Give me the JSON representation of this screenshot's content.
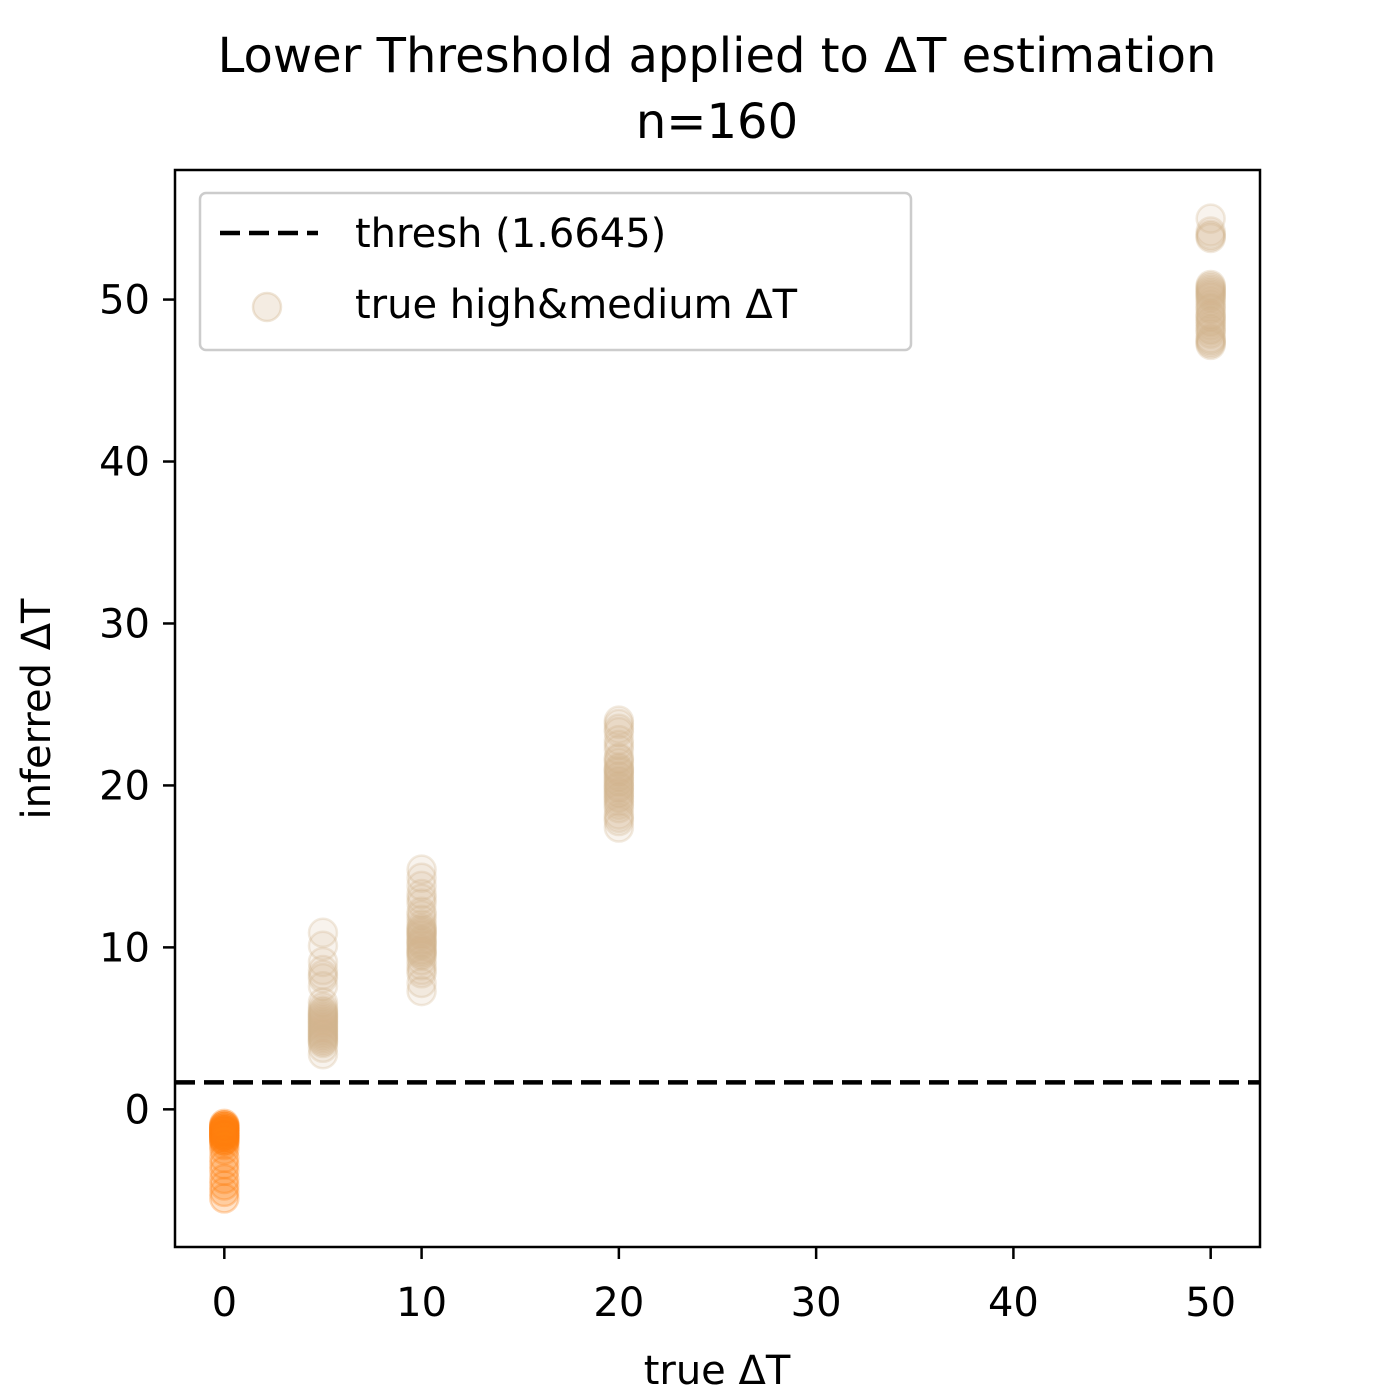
{
  "chart_data": {
    "type": "scatter",
    "title": "Lower Threshold applied to ΔT estimation",
    "subtitle": "n=160",
    "xlabel": "true ΔT",
    "ylabel": "inferred ΔT",
    "xlim": [
      -2.5,
      52.5
    ],
    "ylim": [
      -8.5,
      58.0
    ],
    "xticks": [
      0,
      10,
      20,
      30,
      40,
      50
    ],
    "yticks": [
      0,
      10,
      20,
      30,
      40,
      50
    ],
    "xtick_labels": [
      "0",
      "10",
      "20",
      "30",
      "40",
      "50"
    ],
    "ytick_labels": [
      "0",
      "10",
      "20",
      "30",
      "40",
      "50"
    ],
    "grid": false,
    "legend_placement": "upper-left",
    "threshold": {
      "label": "thresh (1.6645)",
      "value": 1.6645,
      "color": "#000000",
      "style": "dashed"
    },
    "series": [
      {
        "name": "",
        "color": "#ff7f0e",
        "x": [
          0,
          0,
          0,
          0,
          0,
          0,
          0,
          0,
          0,
          0,
          0,
          0,
          0,
          0,
          0,
          0,
          0,
          0,
          0,
          0,
          0,
          0,
          0,
          0,
          0,
          0,
          0,
          0,
          0,
          0,
          0,
          0
        ],
        "y": [
          -0.9,
          -1.0,
          -1.1,
          -1.2,
          -1.3,
          -1.4,
          -1.5,
          -1.6,
          -1.7,
          -1.8,
          -1.9,
          -2.0,
          -1.2,
          -1.5,
          -1.1,
          -1.7,
          -1.3,
          -1.6,
          -2.2,
          -2.5,
          -3.0,
          -3.4,
          -3.8,
          -4.3,
          -4.7,
          -5.1,
          -5.5,
          -1.4,
          -1.0,
          -1.9,
          -1.6,
          -1.3
        ]
      },
      {
        "name": "true high&medium ΔT",
        "color": "#d2b48c",
        "x": [
          5,
          5,
          5,
          5,
          5,
          5,
          5,
          5,
          5,
          5,
          5,
          5,
          5,
          5,
          5,
          5,
          5,
          5,
          5,
          5,
          5,
          5,
          5,
          5,
          5,
          5,
          5,
          5,
          5,
          5,
          5,
          5,
          10,
          10,
          10,
          10,
          10,
          10,
          10,
          10,
          10,
          10,
          10,
          10,
          10,
          10,
          10,
          10,
          10,
          10,
          10,
          10,
          10,
          10,
          10,
          10,
          10,
          10,
          10,
          10,
          10,
          10,
          10,
          10,
          20,
          20,
          20,
          20,
          20,
          20,
          20,
          20,
          20,
          20,
          20,
          20,
          20,
          20,
          20,
          20,
          20,
          20,
          20,
          20,
          20,
          20,
          20,
          20,
          20,
          20,
          20,
          20,
          20,
          20,
          20,
          20,
          50,
          50,
          50,
          50,
          50,
          50,
          50,
          50,
          50,
          50,
          50,
          50,
          50,
          50,
          50,
          50,
          50,
          50,
          50,
          50,
          50,
          50,
          50,
          50,
          50,
          50,
          50,
          50,
          50,
          50,
          50,
          50
        ],
        "y": [
          3.4,
          3.8,
          4.1,
          4.3,
          4.5,
          4.7,
          4.9,
          5.0,
          5.2,
          5.4,
          5.5,
          5.7,
          5.9,
          6.1,
          6.3,
          4.4,
          4.8,
          5.1,
          5.6,
          6.0,
          6.6,
          7.6,
          8.1,
          8.3,
          8.6,
          9.1,
          10.1,
          10.9,
          4.2,
          5.3,
          5.8,
          4.6,
          7.3,
          7.8,
          8.4,
          8.9,
          9.2,
          9.5,
          9.7,
          9.9,
          10.1,
          10.3,
          10.5,
          10.7,
          10.9,
          11.1,
          11.4,
          11.7,
          12.2,
          12.7,
          13.3,
          13.8,
          14.3,
          14.8,
          9.6,
          10.2,
          10.8,
          11.2,
          9.8,
          10.4,
          8.6,
          12.0,
          13.0,
          11.0,
          17.4,
          17.8,
          18.2,
          18.6,
          19.0,
          19.3,
          19.6,
          19.9,
          20.2,
          20.5,
          20.8,
          21.1,
          21.4,
          21.7,
          22.2,
          22.8,
          23.3,
          23.8,
          24.0,
          18.0,
          19.5,
          20.0,
          20.6,
          21.0,
          20.3,
          19.2,
          18.8,
          21.6,
          22.5,
          23.5,
          20.9,
          19.8,
          47.2,
          47.4,
          47.6,
          47.9,
          48.1,
          48.4,
          48.6,
          48.9,
          49.1,
          49.4,
          49.7,
          49.9,
          50.1,
          50.3,
          50.5,
          50.7,
          50.9,
          53.8,
          54.0,
          54.2,
          55.0,
          47.5,
          48.2,
          49.0,
          50.2,
          50.6,
          47.3,
          53.9,
          48.7,
          49.5,
          50.4,
          50.8
        ]
      }
    ]
  }
}
